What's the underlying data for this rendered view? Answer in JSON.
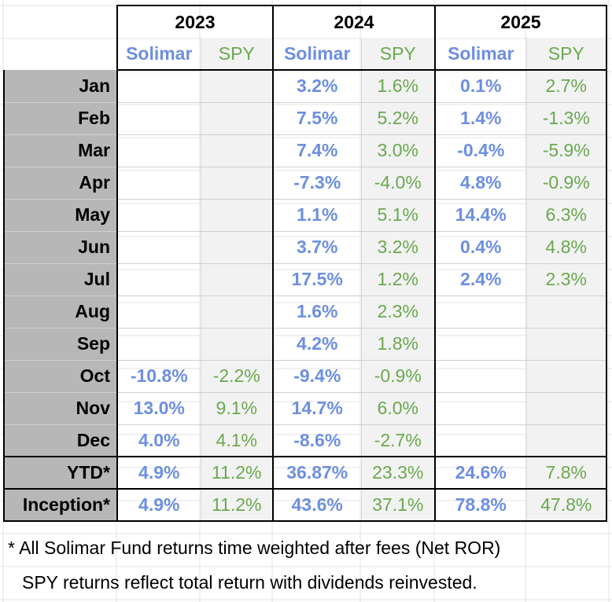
{
  "years": [
    "2023",
    "2024",
    "2025"
  ],
  "sub_headers": {
    "fund": "Solimar",
    "benchmark": "SPY"
  },
  "rows": [
    {
      "label": "Jan",
      "v": [
        "",
        "",
        "3.2%",
        "1.6%",
        "0.1%",
        "2.7%"
      ]
    },
    {
      "label": "Feb",
      "v": [
        "",
        "",
        "7.5%",
        "5.2%",
        "1.4%",
        "-1.3%"
      ]
    },
    {
      "label": "Mar",
      "v": [
        "",
        "",
        "7.4%",
        "3.0%",
        "-0.4%",
        "-5.9%"
      ]
    },
    {
      "label": "Apr",
      "v": [
        "",
        "",
        "-7.3%",
        "-4.0%",
        "4.8%",
        "-0.9%"
      ]
    },
    {
      "label": "May",
      "v": [
        "",
        "",
        "1.1%",
        "5.1%",
        "14.4%",
        "6.3%"
      ]
    },
    {
      "label": "Jun",
      "v": [
        "",
        "",
        "3.7%",
        "3.2%",
        "0.4%",
        "4.8%"
      ]
    },
    {
      "label": "Jul",
      "v": [
        "",
        "",
        "17.5%",
        "1.2%",
        "2.4%",
        "2.3%"
      ]
    },
    {
      "label": "Aug",
      "v": [
        "",
        "",
        "1.6%",
        "2.3%",
        "",
        ""
      ]
    },
    {
      "label": "Sep",
      "v": [
        "",
        "",
        "4.2%",
        "1.8%",
        "",
        ""
      ]
    },
    {
      "label": "Oct",
      "v": [
        "-10.8%",
        "-2.2%",
        "-9.4%",
        "-0.9%",
        "",
        ""
      ]
    },
    {
      "label": "Nov",
      "v": [
        "13.0%",
        "9.1%",
        "14.7%",
        "6.0%",
        "",
        ""
      ]
    },
    {
      "label": "Dec",
      "v": [
        "4.0%",
        "4.1%",
        "-8.6%",
        "-2.7%",
        "",
        ""
      ]
    },
    {
      "label": "YTD*",
      "v": [
        "4.9%",
        "11.2%",
        "36.87%",
        "23.3%",
        "24.6%",
        "7.8%"
      ]
    },
    {
      "label": "Inception*",
      "v": [
        "4.9%",
        "11.2%",
        "43.6%",
        "37.1%",
        "78.8%",
        "47.8%"
      ]
    }
  ],
  "footnotes": [
    "* All Solimar Fund returns time weighted after fees (Net ROR)",
    "SPY returns reflect total return with dividends reinvested."
  ],
  "colors": {
    "fund": "#6d8fe0",
    "benchmark": "#6aa84f",
    "month_bg": "#b7b7b7",
    "spy_bg": "#f2f2f2"
  }
}
